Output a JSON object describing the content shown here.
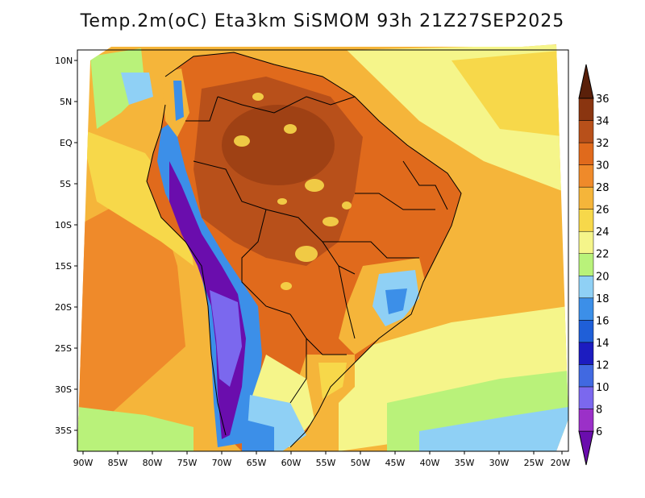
{
  "title": "Temp.2m(oC) Eta3km SiSMOM 93h 21Z27SEP2025",
  "axes": {
    "lat_labels": [
      "10N",
      "5N",
      "EQ",
      "5S",
      "10S",
      "15S",
      "20S",
      "25S",
      "30S",
      "35S"
    ],
    "lat_values": [
      10,
      5,
      0,
      -5,
      -10,
      -15,
      -20,
      -25,
      -30,
      -35
    ],
    "lon_labels": [
      "90W",
      "85W",
      "80W",
      "75W",
      "70W",
      "65W",
      "60W",
      "55W",
      "50W",
      "45W",
      "40W",
      "35W",
      "30W",
      "25W",
      "20W"
    ],
    "lon_values": [
      -90,
      -85,
      -80,
      -75,
      -70,
      -65,
      -60,
      -55,
      -50,
      -45,
      -40,
      -35,
      -30,
      -25,
      -20
    ]
  },
  "colorbar": {
    "labels": [
      "6",
      "8",
      "10",
      "12",
      "14",
      "16",
      "18",
      "20",
      "22",
      "24",
      "26",
      "28",
      "30",
      "32",
      "34",
      "36"
    ],
    "colors": [
      "#6a0dad",
      "#9b30c8",
      "#7b68ee",
      "#4169e1",
      "#1c1cc0",
      "#1f5fd8",
      "#3c8fe8",
      "#8fd0f5",
      "#b9f27a",
      "#f5f58a",
      "#f7d84a",
      "#f5b53a",
      "#ef8a2a",
      "#e06a1c",
      "#b8501a",
      "#8a3510",
      "#5a200a"
    ]
  },
  "map_data": {
    "variable": "2 m temperature",
    "units": "oC",
    "model": "Eta3km SiSMOM",
    "forecast_hour": "93h",
    "valid_time": "21Z27SEP2025",
    "region": "South America"
  }
}
